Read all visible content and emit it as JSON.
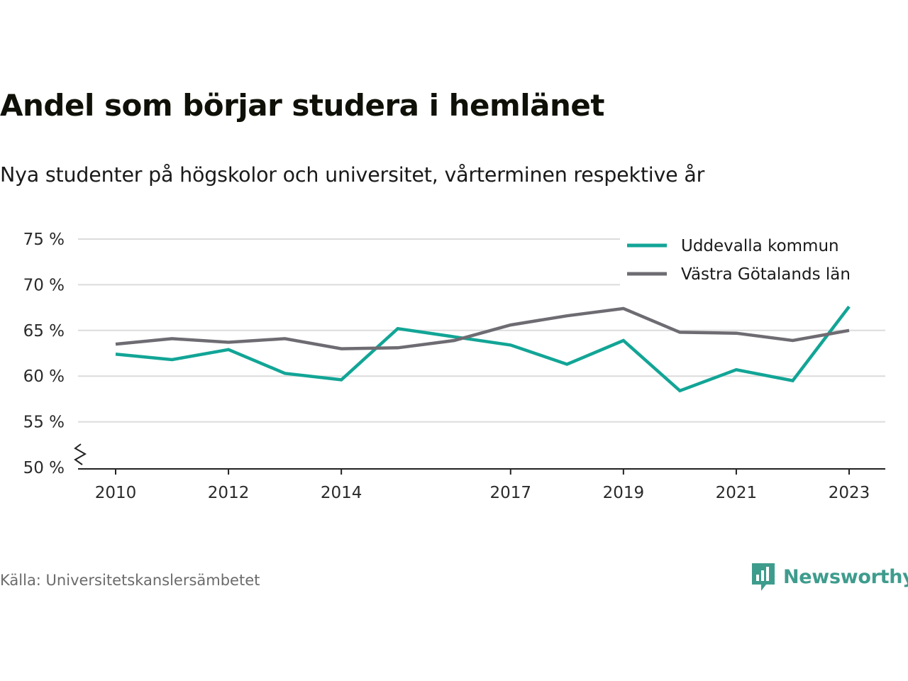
{
  "header": {
    "title": "Andel som börjar studera i hemlänet",
    "subtitle": "Nya studenter på högskolor och universitet, vårterminen respektive år"
  },
  "footer": {
    "source": "Källa: Universitetskanslersämbetet",
    "brand": "Newsworthy",
    "brand_icon": "newsworthy-logo-icon"
  },
  "colors": {
    "uddevalla": "#12a596",
    "vastra": "#6e6c72",
    "grid": "#dcdcdc",
    "axis": "#222222",
    "brand": "#3e9c8d"
  },
  "chart_data": {
    "type": "line",
    "title": "Andel som börjar studera i hemlänet",
    "subtitle": "Nya studenter på högskolor och universitet, vårterminen respektive år",
    "xlabel": "",
    "ylabel": "",
    "x": [
      2010,
      2011,
      2012,
      2013,
      2014,
      2015,
      2016,
      2017,
      2018,
      2019,
      2020,
      2021,
      2022,
      2023
    ],
    "xticks": [
      2010,
      2012,
      2014,
      2017,
      2019,
      2021,
      2023
    ],
    "xtick_labels": [
      "2010",
      "2012",
      "2014",
      "2017",
      "2019",
      "2021",
      "2023"
    ],
    "yticks": [
      50,
      55,
      60,
      65,
      70,
      75
    ],
    "ytick_labels": [
      "50 %",
      "55 %",
      "60 %",
      "65 %",
      "70 %",
      "75 %"
    ],
    "ylim": [
      50,
      75
    ],
    "y_axis_break": true,
    "grid": true,
    "legend_position": "top-right",
    "series": [
      {
        "name": "Uddevalla kommun",
        "color": "#12a596",
        "values": [
          62.4,
          61.8,
          62.9,
          60.3,
          59.6,
          65.2,
          64.3,
          63.4,
          61.3,
          63.9,
          58.4,
          60.7,
          59.5,
          67.6
        ]
      },
      {
        "name": "Västra Götalands län",
        "color": "#6e6c72",
        "values": [
          63.5,
          64.1,
          63.7,
          64.1,
          63.0,
          63.1,
          63.9,
          65.6,
          66.6,
          67.4,
          64.8,
          64.7,
          63.9,
          65.0
        ]
      }
    ]
  }
}
